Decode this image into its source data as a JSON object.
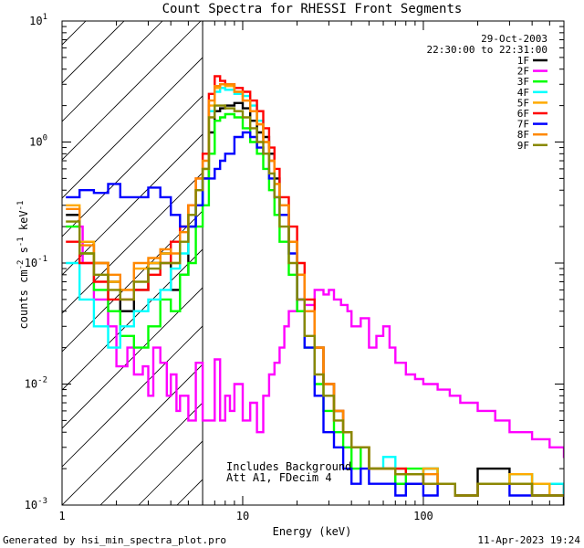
{
  "chart_data": {
    "type": "line",
    "title": "Count Spectra for RHESSI Front Segments",
    "xlabel": "Energy (keV)",
    "ylabel_main": "counts cm",
    "ylabel_exp1": "-2",
    "ylabel_mid": " s",
    "ylabel_exp2": "-1",
    "ylabel_tail": " keV",
    "ylabel_exp3": "-1",
    "x_scale": "log",
    "y_scale": "log",
    "xlim": [
      1,
      600
    ],
    "ylim": [
      0.001,
      10
    ],
    "x_ticks": [
      {
        "value": 1,
        "label": "1"
      },
      {
        "value": 10,
        "label": "10"
      },
      {
        "value": 100,
        "label": "100"
      }
    ],
    "y_ticks": [
      {
        "value": 0.001,
        "base": "10",
        "exp": "-3"
      },
      {
        "value": 0.01,
        "base": "10",
        "exp": "-2"
      },
      {
        "value": 0.1,
        "base": "10",
        "exp": "-1"
      },
      {
        "value": 1,
        "base": "10",
        "exp": "0"
      },
      {
        "value": 10,
        "base": "10",
        "exp": "1"
      }
    ],
    "hatch_upper_keV": 6,
    "date": "29-Oct-2003",
    "time_range": "22:30:00 to 22:31:00",
    "annotation_1": "Includes Background",
    "annotation_2": "Att A1, FDecim 4",
    "footer_left": "Generated by hsi_min_spectra_plot.pro",
    "footer_right": "11-Apr-2023 19:24",
    "series": [
      {
        "name": "1F",
        "color": "#000000",
        "x": [
          1.05,
          1.25,
          1.5,
          1.8,
          2.1,
          2.5,
          3.0,
          3.5,
          4.0,
          4.5,
          5.0,
          5.5,
          6.0,
          6.5,
          7.0,
          7.5,
          8.0,
          9.0,
          10.0,
          11,
          12,
          13,
          14,
          15,
          16,
          18,
          20,
          22,
          25,
          28,
          32,
          36,
          40,
          45,
          50,
          60,
          70,
          80,
          100,
          120,
          150,
          200,
          300,
          400,
          500,
          600
        ],
        "y": [
          0.25,
          0.15,
          0.1,
          0.07,
          0.04,
          0.06,
          0.1,
          0.12,
          0.06,
          0.08,
          0.2,
          0.3,
          0.5,
          1.2,
          1.8,
          1.9,
          2.0,
          2.1,
          1.9,
          1.5,
          1.2,
          1.1,
          0.8,
          0.5,
          0.3,
          0.15,
          0.08,
          0.04,
          0.02,
          0.01,
          0.006,
          0.004,
          0.003,
          0.003,
          0.002,
          0.002,
          0.0015,
          0.0015,
          0.002,
          0.0015,
          0.0012,
          0.002,
          0.0015,
          0.0012,
          0.0015,
          0.001
        ]
      },
      {
        "name": "2F",
        "color": "#ff00ff",
        "x": [
          1.2,
          1.3,
          1.5,
          1.8,
          2.0,
          2.3,
          2.5,
          2.8,
          3.0,
          3.2,
          3.5,
          3.8,
          4.0,
          4.3,
          4.5,
          5.0,
          5.5,
          6.0,
          6.5,
          7.0,
          7.5,
          8.0,
          8.5,
          9.0,
          10,
          11,
          12,
          13,
          14,
          15,
          16,
          17,
          18,
          20,
          22,
          25,
          28,
          30,
          32,
          35,
          38,
          40,
          45,
          50,
          55,
          60,
          65,
          70,
          80,
          90,
          100,
          120,
          140,
          160,
          200,
          250,
          300,
          350,
          400,
          500,
          600
        ],
        "y": [
          0.2,
          0.1,
          0.05,
          0.03,
          0.014,
          0.02,
          0.012,
          0.014,
          0.008,
          0.02,
          0.015,
          0.008,
          0.012,
          0.006,
          0.008,
          0.005,
          0.015,
          0.005,
          0.005,
          0.016,
          0.005,
          0.008,
          0.006,
          0.01,
          0.005,
          0.007,
          0.004,
          0.008,
          0.012,
          0.015,
          0.02,
          0.03,
          0.04,
          0.05,
          0.045,
          0.06,
          0.055,
          0.06,
          0.05,
          0.045,
          0.04,
          0.03,
          0.035,
          0.02,
          0.025,
          0.03,
          0.02,
          0.015,
          0.012,
          0.011,
          0.01,
          0.009,
          0.008,
          0.007,
          0.006,
          0.005,
          0.004,
          0.004,
          0.0035,
          0.003,
          0.0025
        ]
      },
      {
        "name": "3F",
        "color": "#00ff00",
        "x": [
          1.05,
          1.25,
          1.5,
          1.8,
          2.1,
          2.5,
          3.0,
          3.5,
          4.0,
          4.5,
          5.0,
          5.5,
          6.0,
          6.5,
          7.0,
          7.5,
          8.0,
          9.0,
          10.0,
          11,
          12,
          13,
          14,
          15,
          16,
          18,
          20,
          22,
          25,
          28,
          32,
          36,
          40,
          45,
          50,
          60,
          70,
          80,
          100,
          120,
          150,
          200,
          300,
          400,
          500,
          600
        ],
        "y": [
          0.2,
          0.12,
          0.06,
          0.04,
          0.025,
          0.02,
          0.03,
          0.05,
          0.04,
          0.08,
          0.1,
          0.2,
          0.3,
          0.8,
          1.5,
          1.6,
          1.7,
          1.6,
          1.3,
          1.0,
          0.8,
          0.6,
          0.4,
          0.25,
          0.15,
          0.08,
          0.04,
          0.02,
          0.01,
          0.006,
          0.004,
          0.003,
          0.002,
          0.003,
          0.002,
          0.002,
          0.0015,
          0.002,
          0.002,
          0.0015,
          0.0012,
          0.0015,
          0.0018,
          0.0015,
          0.0012,
          0.0012
        ]
      },
      {
        "name": "4F",
        "color": "#00ffff",
        "x": [
          1.05,
          1.25,
          1.5,
          1.8,
          2.1,
          2.5,
          3.0,
          3.5,
          4.0,
          4.5,
          5.0,
          5.5,
          6.0,
          6.5,
          7.0,
          7.5,
          8.0,
          9.0,
          10.0,
          11,
          12,
          13,
          14,
          15,
          16,
          18,
          20,
          22,
          25,
          28,
          32,
          36,
          40,
          45,
          50,
          60,
          70,
          80,
          100,
          120,
          150,
          200,
          300,
          400,
          500,
          600
        ],
        "y": [
          0.1,
          0.05,
          0.03,
          0.02,
          0.03,
          0.04,
          0.05,
          0.06,
          0.09,
          0.12,
          0.2,
          0.3,
          0.6,
          1.8,
          2.6,
          2.8,
          2.7,
          2.5,
          2.4,
          2.0,
          1.5,
          1.0,
          0.7,
          0.45,
          0.3,
          0.15,
          0.08,
          0.04,
          0.02,
          0.01,
          0.006,
          0.004,
          0.003,
          0.003,
          0.002,
          0.0025,
          0.002,
          0.0018,
          0.002,
          0.0015,
          0.0012,
          0.0015,
          0.0018,
          0.0012,
          0.0015,
          0.0012
        ]
      },
      {
        "name": "5F",
        "color": "#ffaa00",
        "x": [
          1.05,
          1.25,
          1.5,
          1.8,
          2.1,
          2.5,
          3.0,
          3.5,
          4.0,
          4.5,
          5.0,
          5.5,
          6.0,
          6.5,
          7.0,
          7.5,
          8.0,
          9.0,
          10.0,
          11,
          12,
          13,
          14,
          15,
          16,
          18,
          20,
          22,
          25,
          28,
          32,
          36,
          40,
          45,
          50,
          60,
          70,
          80,
          100,
          120,
          150,
          200,
          300,
          400,
          500,
          600
        ],
        "y": [
          0.3,
          0.15,
          0.1,
          0.07,
          0.06,
          0.09,
          0.1,
          0.12,
          0.1,
          0.2,
          0.3,
          0.4,
          0.6,
          2.0,
          2.8,
          3.0,
          2.9,
          2.6,
          2.2,
          1.8,
          1.4,
          1.0,
          0.7,
          0.45,
          0.3,
          0.15,
          0.08,
          0.04,
          0.02,
          0.01,
          0.006,
          0.004,
          0.003,
          0.003,
          0.002,
          0.002,
          0.002,
          0.0018,
          0.002,
          0.0015,
          0.0012,
          0.0015,
          0.0018,
          0.0015,
          0.0012,
          0.0012
        ]
      },
      {
        "name": "6F",
        "color": "#ff0000",
        "x": [
          1.05,
          1.25,
          1.5,
          1.8,
          2.1,
          2.5,
          3.0,
          3.5,
          4.0,
          4.5,
          5.0,
          5.5,
          6.0,
          6.5,
          7.0,
          7.5,
          8.0,
          9.0,
          10.0,
          11,
          12,
          13,
          14,
          15,
          16,
          18,
          20,
          22,
          25,
          28,
          32,
          36,
          40,
          45,
          50,
          60,
          70,
          80,
          100,
          120,
          150,
          200,
          300,
          400,
          500,
          600
        ],
        "y": [
          0.15,
          0.1,
          0.07,
          0.05,
          0.05,
          0.06,
          0.08,
          0.1,
          0.15,
          0.2,
          0.3,
          0.5,
          0.8,
          2.5,
          3.5,
          3.2,
          3.0,
          2.8,
          2.6,
          2.2,
          1.8,
          1.3,
          0.9,
          0.6,
          0.35,
          0.2,
          0.1,
          0.05,
          0.02,
          0.01,
          0.006,
          0.004,
          0.003,
          0.003,
          0.002,
          0.002,
          0.002,
          0.0018,
          0.0015,
          0.0015,
          0.0012,
          0.0015,
          0.0015,
          0.0012,
          0.0012,
          0.0012
        ]
      },
      {
        "name": "7F",
        "color": "#0000ff",
        "x": [
          1.05,
          1.25,
          1.5,
          1.8,
          2.1,
          2.5,
          3.0,
          3.5,
          4.0,
          4.5,
          5.0,
          5.5,
          6.0,
          6.5,
          7.0,
          7.5,
          8.0,
          9.0,
          10.0,
          11,
          12,
          13,
          14,
          15,
          16,
          18,
          20,
          22,
          25,
          28,
          32,
          36,
          40,
          45,
          50,
          60,
          70,
          80,
          100,
          120,
          150,
          200,
          300,
          400,
          500,
          600
        ],
        "y": [
          0.35,
          0.4,
          0.38,
          0.45,
          0.35,
          0.35,
          0.42,
          0.35,
          0.25,
          0.2,
          0.2,
          0.3,
          0.5,
          0.5,
          0.6,
          0.7,
          0.8,
          1.1,
          1.2,
          1.1,
          0.9,
          0.8,
          0.5,
          0.35,
          0.25,
          0.12,
          0.05,
          0.02,
          0.008,
          0.004,
          0.003,
          0.002,
          0.0015,
          0.002,
          0.0015,
          0.0015,
          0.0012,
          0.0015,
          0.0012,
          0.0015,
          0.0012,
          0.0015,
          0.0012,
          0.0012,
          0.0012,
          0.0012
        ]
      },
      {
        "name": "8F",
        "color": "#ff8800",
        "x": [
          1.05,
          1.25,
          1.5,
          1.8,
          2.1,
          2.5,
          3.0,
          3.5,
          4.0,
          4.5,
          5.0,
          5.5,
          6.0,
          6.5,
          7.0,
          7.5,
          8.0,
          9.0,
          10.0,
          11,
          12,
          13,
          14,
          15,
          16,
          18,
          20,
          22,
          25,
          28,
          32,
          36,
          40,
          45,
          50,
          60,
          70,
          80,
          100,
          120,
          150,
          200,
          300,
          400,
          500,
          600
        ],
        "y": [
          0.28,
          0.14,
          0.1,
          0.08,
          0.06,
          0.1,
          0.11,
          0.13,
          0.12,
          0.18,
          0.3,
          0.5,
          0.7,
          2.2,
          2.9,
          3.0,
          3.0,
          2.6,
          2.2,
          1.8,
          1.4,
          1.0,
          0.7,
          0.45,
          0.3,
          0.15,
          0.08,
          0.04,
          0.02,
          0.01,
          0.006,
          0.004,
          0.003,
          0.003,
          0.002,
          0.002,
          0.0018,
          0.0018,
          0.0018,
          0.0015,
          0.0012,
          0.0015,
          0.0015,
          0.0012,
          0.0012,
          0.0012
        ]
      },
      {
        "name": "9F",
        "color": "#888800",
        "x": [
          1.05,
          1.25,
          1.5,
          1.8,
          2.1,
          2.5,
          3.0,
          3.5,
          4.0,
          4.5,
          5.0,
          5.5,
          6.0,
          6.5,
          7.0,
          7.5,
          8.0,
          9.0,
          10.0,
          11,
          12,
          13,
          14,
          15,
          16,
          18,
          20,
          22,
          25,
          28,
          32,
          36,
          40,
          45,
          50,
          60,
          70,
          80,
          100,
          120,
          150,
          200,
          300,
          400,
          500,
          600
        ],
        "y": [
          0.22,
          0.12,
          0.08,
          0.06,
          0.05,
          0.07,
          0.09,
          0.1,
          0.1,
          0.15,
          0.25,
          0.4,
          0.6,
          1.6,
          2.0,
          2.0,
          1.9,
          1.8,
          1.6,
          1.3,
          1.0,
          0.8,
          0.55,
          0.35,
          0.2,
          0.1,
          0.05,
          0.025,
          0.012,
          0.008,
          0.005,
          0.004,
          0.003,
          0.003,
          0.002,
          0.002,
          0.0018,
          0.0018,
          0.0015,
          0.0015,
          0.0012,
          0.0015,
          0.0015,
          0.0012,
          0.0012,
          0.0012
        ]
      }
    ]
  }
}
